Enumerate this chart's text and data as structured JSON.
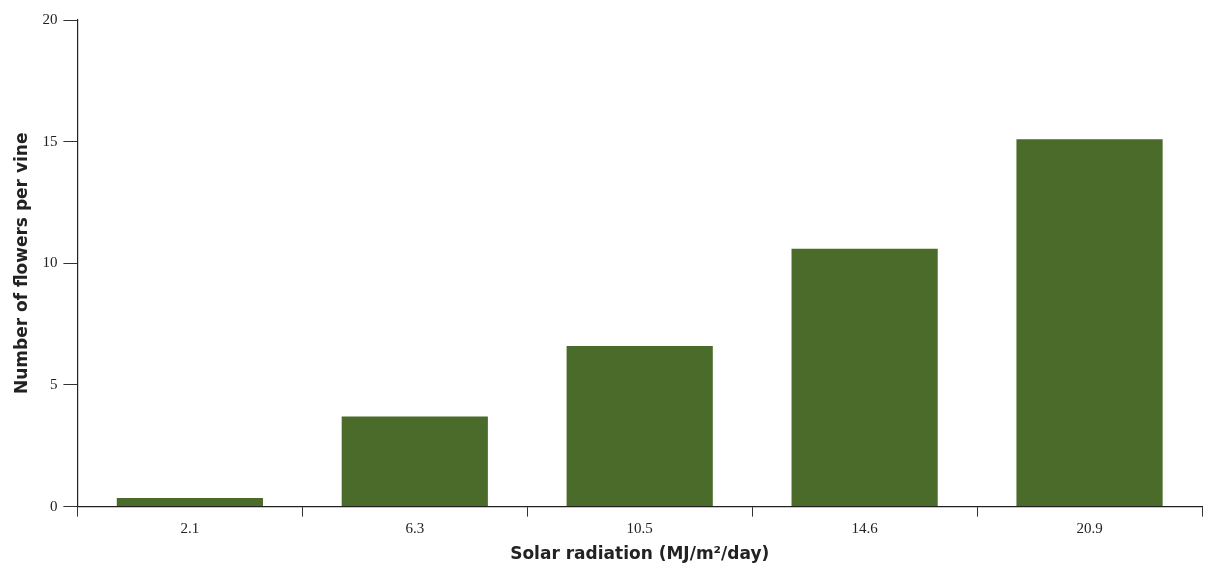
{
  "chart_data": {
    "type": "bar",
    "xlabel": "Solar radiation (MJ/m²/day)",
    "ylabel": "Number of flowers per vine",
    "categories": [
      "2.1",
      "6.3",
      "10.5",
      "14.6",
      "20.9"
    ],
    "values": [
      0.35,
      3.7,
      6.6,
      10.6,
      15.1
    ],
    "color": "#4a6b2a",
    "ylim": [
      0,
      20
    ],
    "yticks": [
      0,
      5,
      10,
      15,
      20
    ],
    "grid": false,
    "legend": false
  }
}
